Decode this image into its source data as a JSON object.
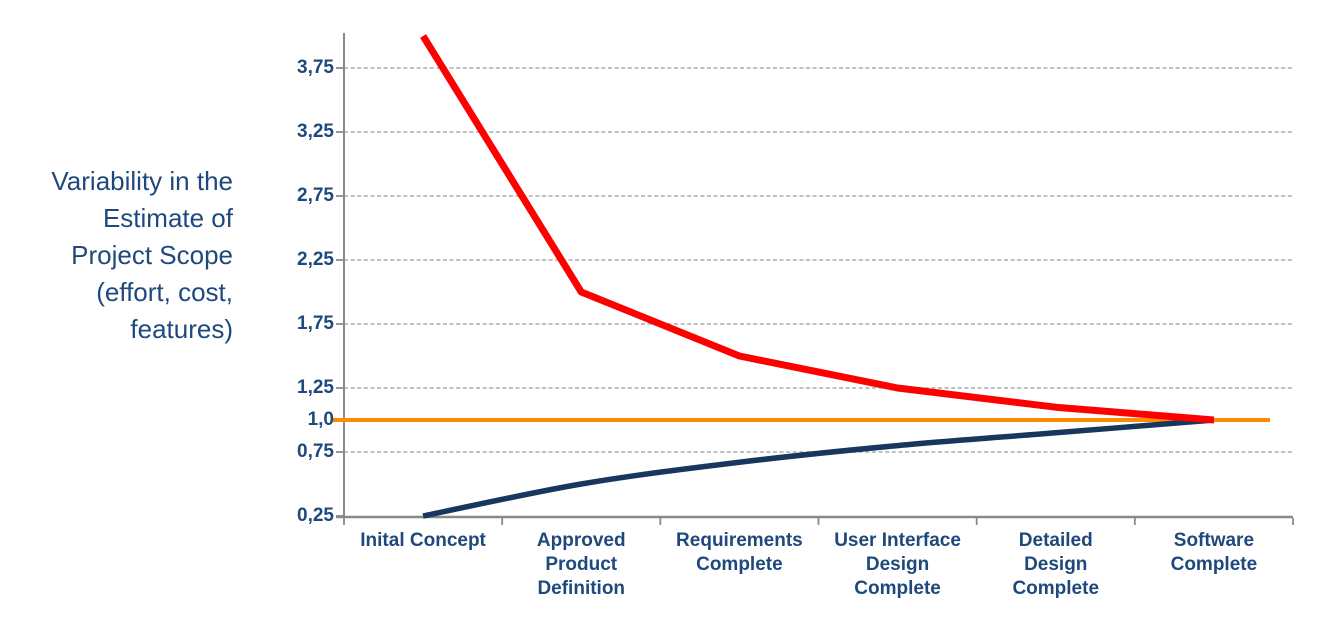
{
  "chart_data": {
    "type": "line",
    "title": "",
    "y_axis_description": "Variability in the\nEstimate of\nProject Scope\n(effort, cost,\nfeatures)",
    "categories": [
      "Inital Concept",
      "Approved Product Definition",
      "Requirements Complete",
      "User Interface Design Complete",
      "Detailed Design Complete",
      "Software Complete"
    ],
    "category_label_lines": [
      "Inital Concept",
      "Approved\nProduct\nDefinition",
      "Requirements\nComplete",
      "User Interface\nDesign\nComplete",
      "Detailed\nDesign\nComplete",
      "Software\nComplete"
    ],
    "series": [
      {
        "name": "one-to-one-baseline",
        "color": "#FF8C00",
        "values": [
          1.0,
          1.0,
          1.0,
          1.0,
          1.0,
          1.0
        ],
        "smooth": false,
        "full_width": true
      },
      {
        "name": "lower-estimate",
        "color": "#17375D",
        "values": [
          0.25,
          0.5,
          0.67,
          0.8,
          0.9,
          1.0
        ],
        "smooth": true,
        "full_width": false
      },
      {
        "name": "upper-estimate",
        "color": "#FF0000",
        "values": [
          4.0,
          2.0,
          1.5,
          1.25,
          1.1,
          1.0
        ],
        "smooth": false,
        "full_width": false
      }
    ],
    "y_ticks": [
      {
        "label": "3,75",
        "value": 3.75,
        "grid": true
      },
      {
        "label": "3,25",
        "value": 3.25,
        "grid": true
      },
      {
        "label": "2,75",
        "value": 2.75,
        "grid": true
      },
      {
        "label": "2,25",
        "value": 2.25,
        "grid": true
      },
      {
        "label": "1,75",
        "value": 1.75,
        "grid": true
      },
      {
        "label": "1,25",
        "value": 1.25,
        "grid": true
      },
      {
        "label": "1,0",
        "value": 1.0,
        "grid": false
      },
      {
        "label": "0,75",
        "value": 0.75,
        "grid": true
      },
      {
        "label": "0,25",
        "value": 0.25,
        "grid": false
      }
    ],
    "ylim": [
      0.25,
      4.0
    ],
    "grid": "dashed-horizontal",
    "legend": "none",
    "colors": {
      "text": "#1F497D",
      "grid": "#A8ACB0",
      "axis": "#898989",
      "upper_line": "#FF0000",
      "lower_line": "#17375D",
      "baseline": "#FF8C00"
    }
  }
}
